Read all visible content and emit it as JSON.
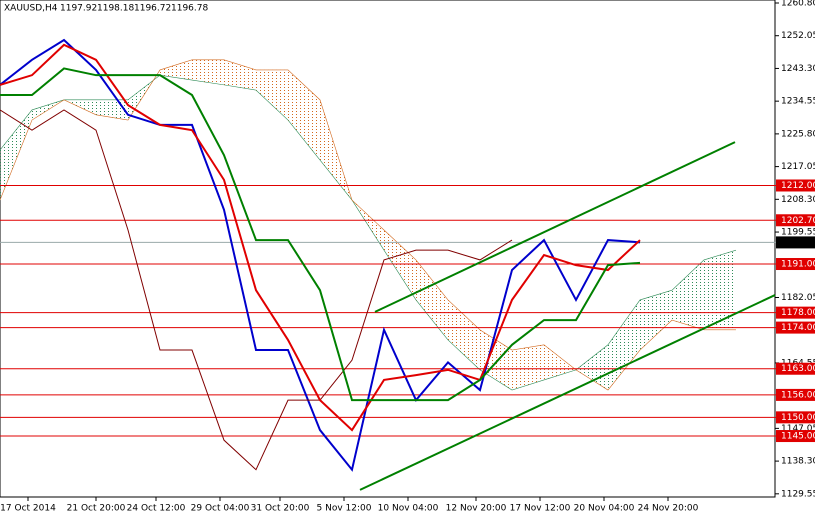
{
  "chart_data": {
    "type": "line",
    "symbol": "XAUUSD,H4",
    "ohlc_text": [
      "1197.92",
      "1198.18",
      "1196.72",
      "1196.78"
    ],
    "x": [
      0,
      8,
      16,
      24,
      32,
      40,
      48,
      56,
      64,
      72,
      80,
      88,
      96,
      104,
      112,
      120,
      128,
      136,
      144,
      152,
      160,
      168,
      176,
      184
    ],
    "xlim": [
      0,
      194
    ],
    "xticks": [
      {
        "value": 7,
        "label": "17 Oct 2014"
      },
      {
        "value": 24,
        "label": "21 Oct 20:00"
      },
      {
        "value": 39,
        "label": "24 Oct 12:00"
      },
      {
        "value": 55,
        "label": "29 Oct 04:00"
      },
      {
        "value": 70,
        "label": "31 Oct 20:00"
      },
      {
        "value": 86,
        "label": "5 Nov 12:00"
      },
      {
        "value": 102,
        "label": "10 Nov 04:00"
      },
      {
        "value": 119,
        "label": "12 Nov 20:00"
      },
      {
        "value": 135,
        "label": "17 Nov 12:00"
      },
      {
        "value": 151,
        "label": "20 Nov 04:00"
      },
      {
        "value": 167,
        "label": "24 Nov 20:00"
      }
    ],
    "ylim": [
      1128.7,
      1261.6
    ],
    "yticks": [
      {
        "value": 1260.8,
        "label": "1260.80"
      },
      {
        "value": 1252.05,
        "label": "1252.05"
      },
      {
        "value": 1243.3,
        "label": "1243.30"
      },
      {
        "value": 1234.55,
        "label": "1234.55"
      },
      {
        "value": 1225.8,
        "label": "1225.80"
      },
      {
        "value": 1217.05,
        "label": "1217.05"
      },
      {
        "value": 1208.3,
        "label": "1208.30"
      },
      {
        "value": 1199.55,
        "label": "1199.55"
      },
      {
        "value": 1182.05,
        "label": "1182.05"
      },
      {
        "value": 1164.55,
        "label": "1164.55"
      },
      {
        "value": 1147.05,
        "label": "1147.05"
      },
      {
        "value": 1138.3,
        "label": "1138.30"
      },
      {
        "value": 1129.55,
        "label": "1129.55"
      }
    ],
    "series": [
      {
        "color": "#0000cc",
        "values": [
          1238.9,
          1245.6,
          1250.9,
          1242.9,
          1230.9,
          1228.2,
          1228.2,
          1205.5,
          1168,
          1168,
          1146.6,
          1136,
          1173.4,
          1154.6,
          1164.7,
          1157.3,
          1189.4,
          1197.4,
          1181.4,
          1197.4,
          1196.8,
          null,
          null,
          null
        ]
      },
      {
        "color": "#800000",
        "values": [
          1232.2,
          1226.8,
          1232.2,
          1226.8,
          1200.1,
          1168,
          1168,
          1143.9,
          1136,
          1154.6,
          1154.6,
          1165.3,
          1192.1,
          1194.7,
          1194.7,
          1192.1,
          1197.4,
          null,
          null,
          null,
          null,
          null,
          null,
          null
        ]
      },
      {
        "color": "#e00000",
        "values": [
          1238.9,
          1241.5,
          1249.6,
          1245.6,
          1233.5,
          1228.2,
          1226.8,
          1213.5,
          1184,
          1170.7,
          1154.6,
          1146.6,
          1160,
          1161.3,
          1162.7,
          1160,
          1181.4,
          1193.4,
          1190.7,
          1189.4,
          1197.4,
          null,
          null,
          null
        ]
      },
      {
        "color": "#008000",
        "values": [
          1236.2,
          1236.2,
          1243.3,
          1241.5,
          1241.5,
          1241.5,
          1236.2,
          1220.1,
          1197.4,
          1197.4,
          1184,
          1154.6,
          1154.6,
          1154.6,
          1154.6,
          1160,
          1169.4,
          1176,
          1176,
          1190.7,
          1191.3,
          null,
          null,
          null
        ]
      }
    ],
    "cloud": {
      "up_color": "#2e8b57",
      "down_color": "#d2691e",
      "span_a": [
        1221.5,
        1232.2,
        1234.9,
        1234.9,
        1234.9,
        1241.5,
        1240.2,
        1238.9,
        1237.5,
        1229.5,
        1218.8,
        1208.1,
        1194.7,
        1181.4,
        1170.7,
        1162.7,
        1157.3,
        1160,
        1162.7,
        1169.4,
        1181.4,
        1184,
        1192.1,
        1194.7
      ],
      "span_b": [
        1208.1,
        1229.5,
        1234.9,
        1230.9,
        1229.5,
        1242.9,
        1245.6,
        1245.6,
        1242.9,
        1242.9,
        1234.9,
        1208.1,
        1200.1,
        1192.1,
        1181.4,
        1173.4,
        1168,
        1169.4,
        1162.7,
        1157.3,
        1168,
        1176,
        1173.4,
        1173.4
      ]
    },
    "levels": [
      {
        "value": 1212,
        "label": "1212.00"
      },
      {
        "value": 1202.7,
        "label": "1202.70"
      },
      {
        "value": 1191,
        "label": "1191.00"
      },
      {
        "value": 1178,
        "label": "1178.00"
      },
      {
        "value": 1174,
        "label": "1174.00"
      },
      {
        "value": 1163,
        "label": "1163.00"
      },
      {
        "value": 1156,
        "label": "1156.00"
      },
      {
        "value": 1150,
        "label": "1150.00"
      },
      {
        "value": 1145,
        "label": "1145.00"
      }
    ],
    "level_color": "#e00000",
    "last_price": {
      "value": 1196.78,
      "label": "1196.78"
    },
    "trendlines": [
      {
        "color": "#008000",
        "x": [
          90,
          193.75
        ],
        "values": [
          1130.6,
          1182.7
        ]
      },
      {
        "color": "#008000",
        "x": [
          93.75,
          183.75
        ],
        "values": [
          1178.2,
          1223.6
        ]
      }
    ]
  }
}
